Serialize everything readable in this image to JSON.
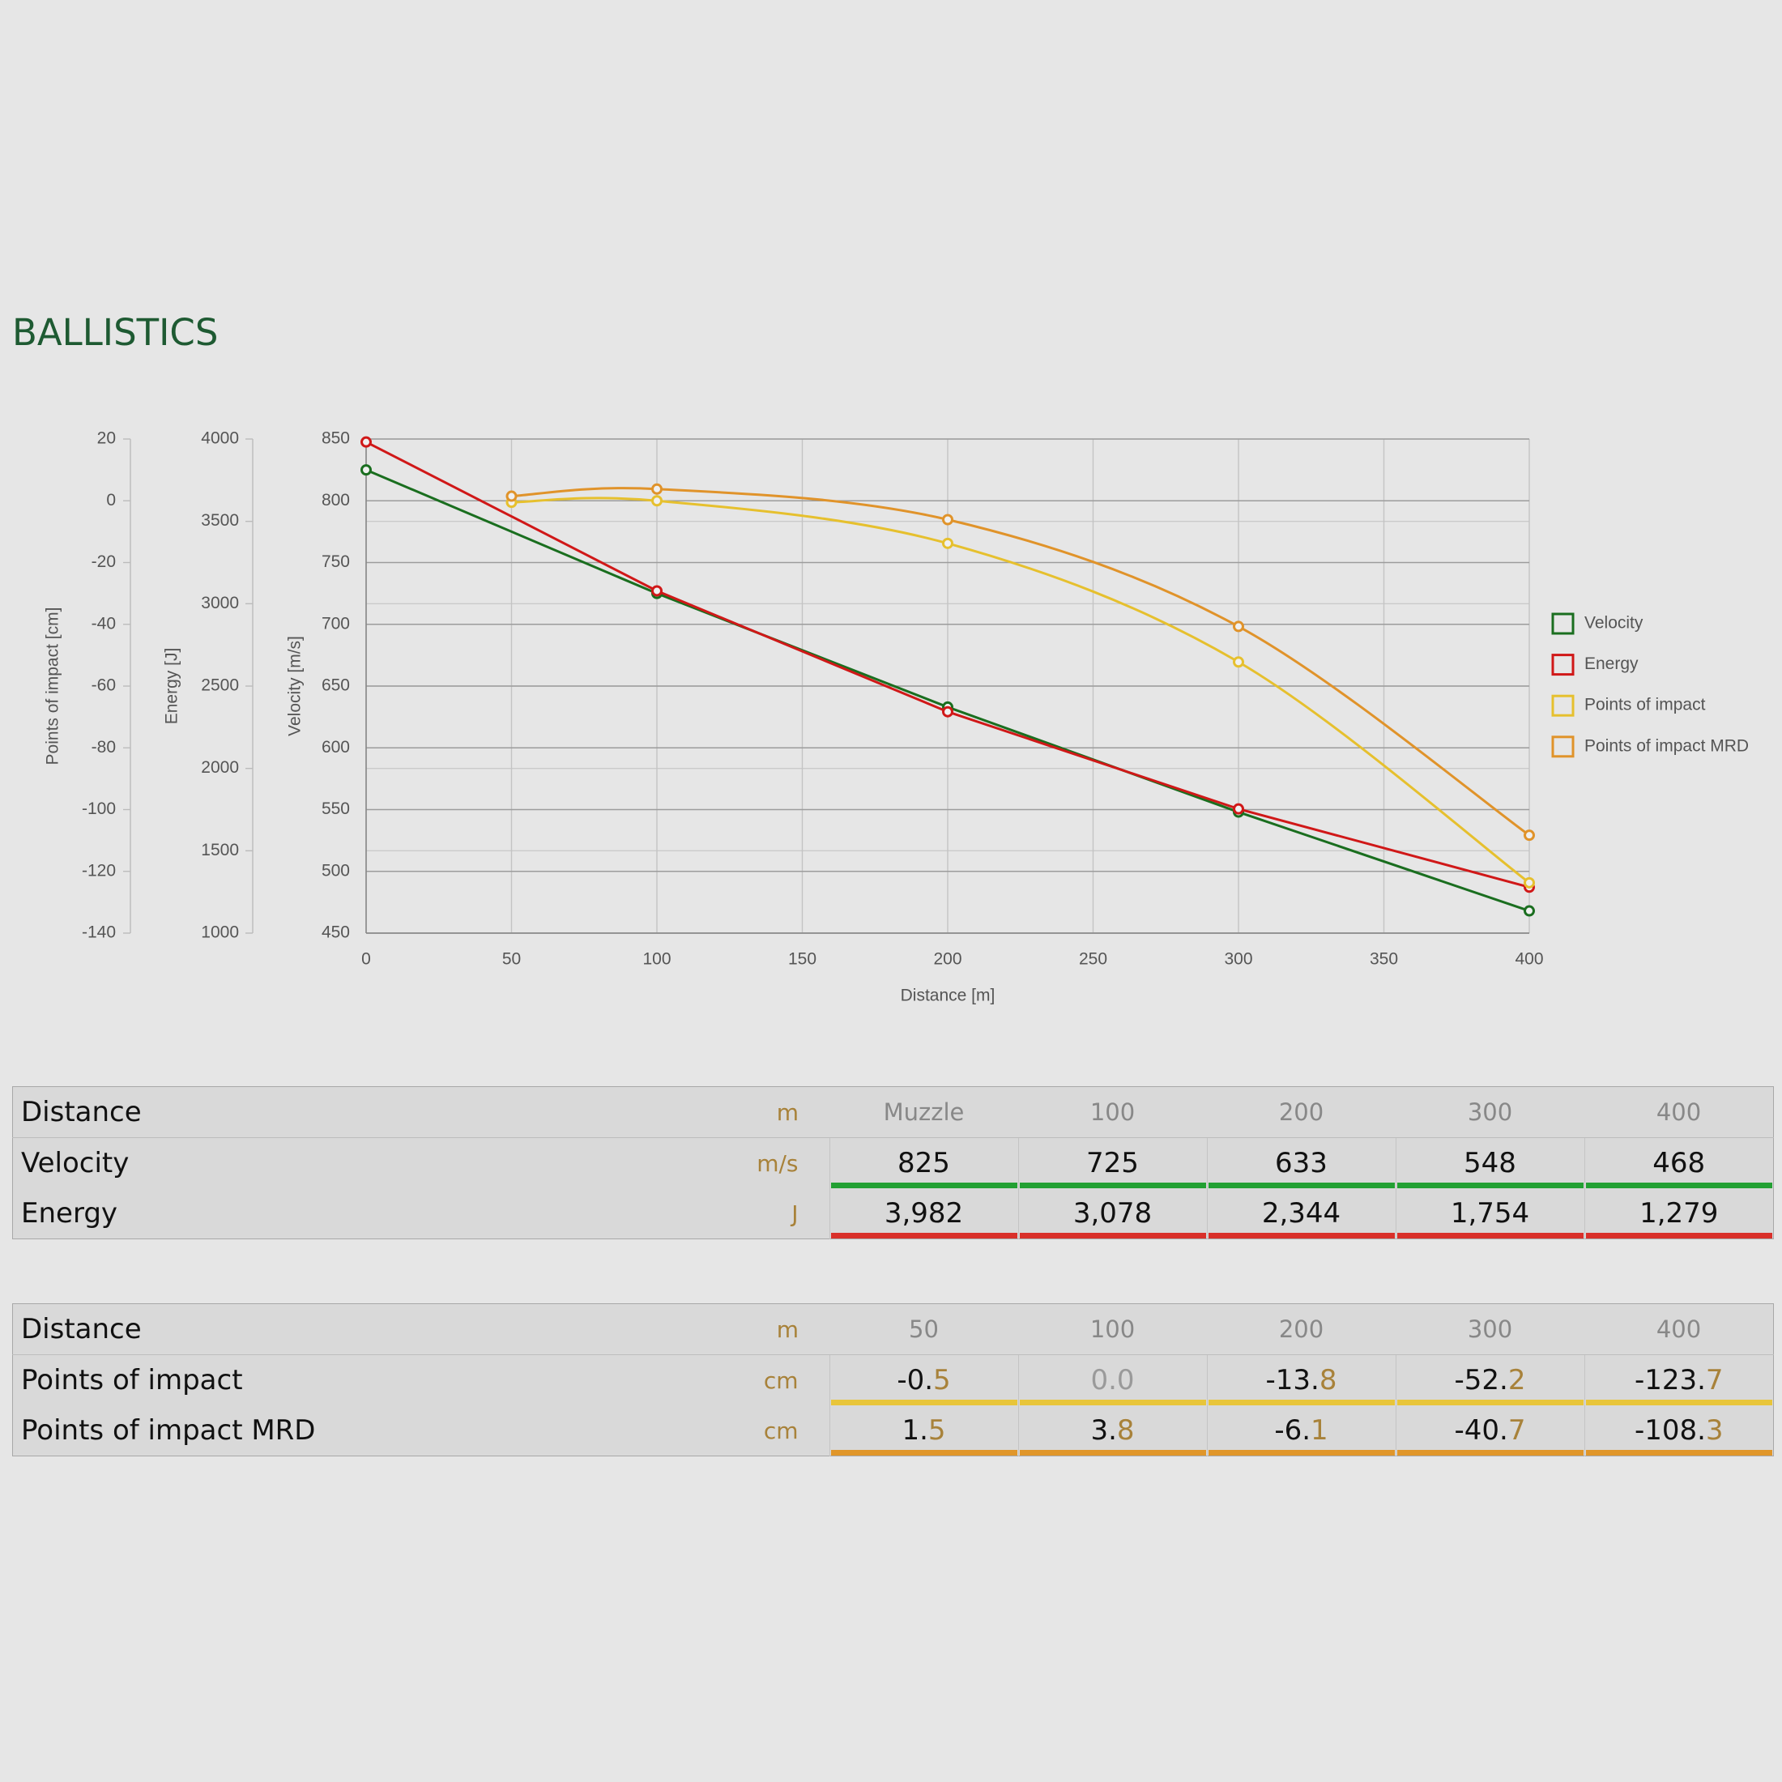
{
  "title": "BALLISTICS",
  "chart_data": {
    "type": "line",
    "xlabel": "Distance [m]",
    "xlim": [
      0,
      400
    ],
    "xticks": [
      0,
      50,
      100,
      150,
      200,
      250,
      300,
      350,
      400
    ],
    "ylabel": "Velocity [m/s]",
    "ylim": [
      450,
      850
    ],
    "yticks": [
      450,
      500,
      550,
      600,
      650,
      700,
      750,
      800,
      850
    ],
    "y2label": "Energy [J]",
    "y2lim": [
      1000,
      4000
    ],
    "y2ticks": [
      1000,
      1500,
      2000,
      2500,
      3000,
      3500,
      4000
    ],
    "y3label": "Points of impact [cm]",
    "y3lim": [
      -140,
      20
    ],
    "y3ticks": [
      -140,
      -120,
      -100,
      -80,
      -60,
      -40,
      -20,
      0,
      20
    ],
    "grid": true,
    "legend": "right",
    "series": [
      {
        "name": "Velocity",
        "color": "#1a6e1f",
        "smooth": false,
        "x": [
          0,
          100,
          200,
          300,
          400
        ],
        "values": [
          825,
          725,
          633,
          548,
          468
        ]
      },
      {
        "name": "Energy",
        "color": "#d01818",
        "axis": "y2",
        "smooth": false,
        "x": [
          0,
          100,
          200,
          300,
          400
        ],
        "values": [
          3982,
          3078,
          2344,
          1754,
          1279
        ]
      },
      {
        "name": "Points of impact",
        "color": "#e6c02e",
        "axis": "y3",
        "smooth": true,
        "x": [
          50,
          100,
          200,
          300,
          400
        ],
        "values": [
          -0.5,
          0.0,
          -13.8,
          -52.2,
          -123.7
        ]
      },
      {
        "name": "Points of impact MRD",
        "color": "#e0932a",
        "axis": "y3",
        "smooth": true,
        "x": [
          50,
          100,
          200,
          300,
          400
        ],
        "values": [
          1.5,
          3.8,
          -6.1,
          -40.7,
          -108.3
        ]
      }
    ]
  },
  "tables": [
    {
      "header": {
        "label": "Distance",
        "unit": "m",
        "values": [
          "Muzzle",
          "100",
          "200",
          "300",
          "400"
        ]
      },
      "rows": [
        {
          "label": "Velocity",
          "unit": "m/s",
          "color": "#23a033",
          "values": [
            "825",
            "725",
            "633",
            "548",
            "468"
          ]
        },
        {
          "label": "Energy",
          "unit": "J",
          "color": "#d9302a",
          "values": [
            "3,982",
            "3,078",
            "2,344",
            "1,754",
            "1,279"
          ]
        }
      ]
    },
    {
      "header": {
        "label": "Distance",
        "unit": "m",
        "values": [
          "50",
          "100",
          "200",
          "300",
          "400"
        ]
      },
      "decimal_color": "#a8823a",
      "rows": [
        {
          "label": "Points of impact",
          "unit": "cm",
          "color": "#e8c53a",
          "values": [
            "-0.5",
            "0.0",
            "-13.8",
            "-52.2",
            "-123.7"
          ]
        },
        {
          "label": "Points of impact MRD",
          "unit": "cm",
          "color": "#e0962a",
          "values": [
            "1.5",
            "3.8",
            "-6.1",
            "-40.7",
            "-108.3"
          ]
        }
      ]
    }
  ]
}
